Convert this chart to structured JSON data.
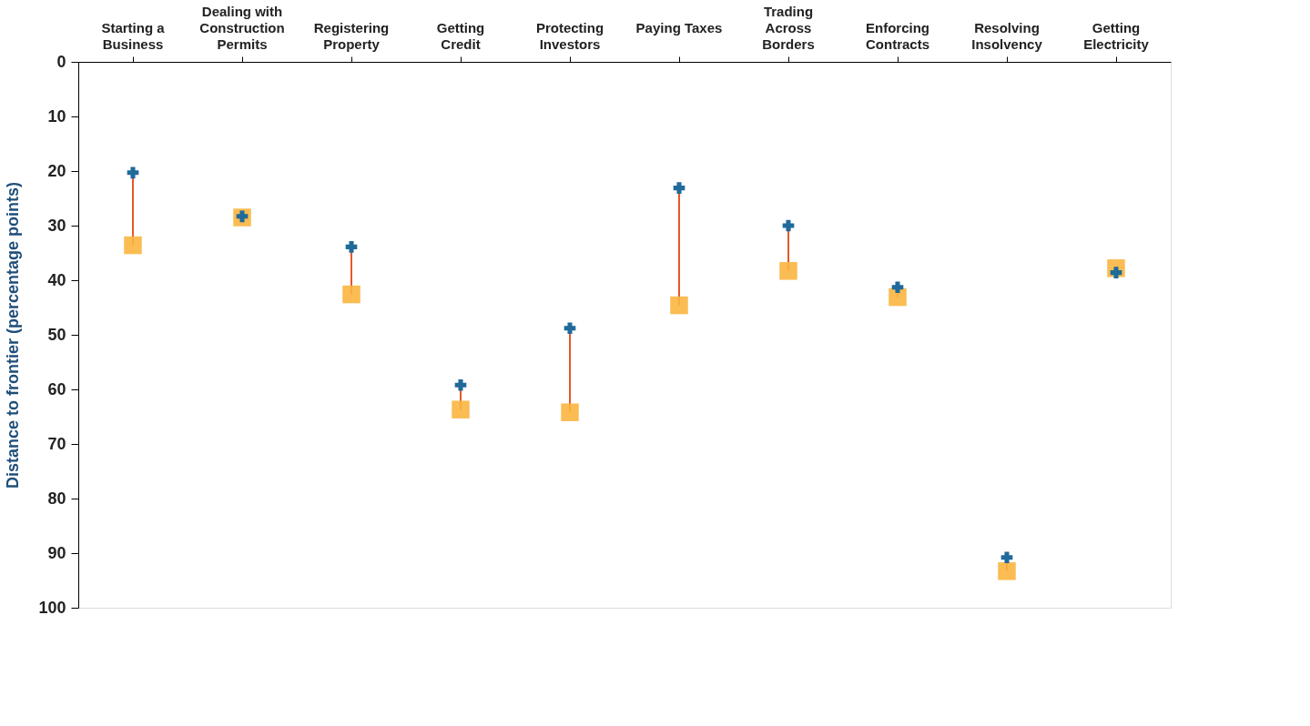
{
  "chart_data": {
    "type": "scatter",
    "ylabel": "Distance to frontier (percentage points)",
    "categories": [
      "Starting a Business",
      "Dealing with Construction Permits",
      "Registering Property",
      "Getting Credit",
      "Protecting Investors",
      "Paying Taxes",
      "Trading Across Borders",
      "Enforcing Contracts",
      "Resolving Insolvency",
      "Getting Electricity"
    ],
    "series": [
      {
        "color": "#1f6a9a",
        "marker": "cross",
        "values": [
          20.3,
          28.3,
          33.9,
          59.2,
          48.8,
          23.1,
          30.0,
          41.3,
          90.8,
          38.6
        ]
      },
      {
        "color": "#f9b540",
        "marker": "square",
        "values": [
          33.6,
          28.5,
          42.6,
          63.7,
          64.2,
          44.6,
          38.3,
          43.1,
          93.3,
          37.8
        ]
      }
    ],
    "ylim": [
      100,
      0
    ],
    "yticks": [
      0,
      10,
      20,
      30,
      40,
      50,
      60,
      70,
      80,
      90,
      100
    ],
    "grid": false
  }
}
